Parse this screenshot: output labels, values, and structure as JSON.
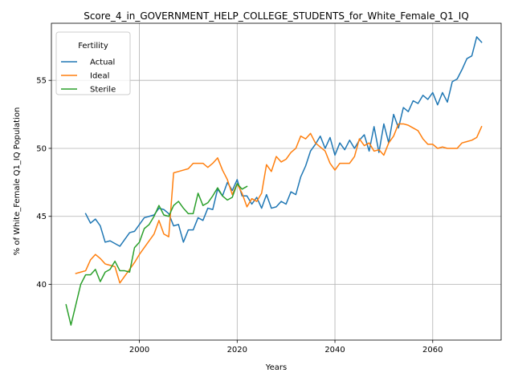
{
  "chart_data": {
    "type": "line",
    "title": "Score_4_in_GOVERNMENT_HELP_COLLEGE_STUDENTS_for_White_Female_Q1_IQ",
    "xlabel": "Years",
    "ylabel": "% of White_Female Q1_IQ Population",
    "xlim": [
      1982,
      2074
    ],
    "ylim": [
      35.9,
      59.2
    ],
    "xticks": [
      2000,
      2020,
      2040,
      2060
    ],
    "yticks": [
      40,
      45,
      50,
      55
    ],
    "grid": true,
    "legend": {
      "title": "Fertility",
      "placement": "top-left"
    },
    "series": [
      {
        "name": "Actual",
        "color": "#1f77b4",
        "points": [
          [
            1989,
            45.2
          ],
          [
            1990,
            44.5
          ],
          [
            1991,
            44.8
          ],
          [
            1992,
            44.3
          ],
          [
            1993,
            43.1
          ],
          [
            1994,
            43.2
          ],
          [
            1995,
            43.0
          ],
          [
            1996,
            42.8
          ],
          [
            1997,
            43.3
          ],
          [
            1998,
            43.8
          ],
          [
            1999,
            43.9
          ],
          [
            2000,
            44.4
          ],
          [
            2001,
            44.9
          ],
          [
            2002,
            45.0
          ],
          [
            2003,
            45.1
          ],
          [
            2004,
            45.6
          ],
          [
            2005,
            45.5
          ],
          [
            2006,
            45.2
          ],
          [
            2007,
            44.3
          ],
          [
            2008,
            44.4
          ],
          [
            2009,
            43.1
          ],
          [
            2010,
            44.0
          ],
          [
            2011,
            44.0
          ],
          [
            2012,
            44.9
          ],
          [
            2013,
            44.7
          ],
          [
            2014,
            45.6
          ],
          [
            2015,
            45.5
          ],
          [
            2016,
            47.0
          ],
          [
            2017,
            46.5
          ],
          [
            2018,
            47.5
          ],
          [
            2019,
            46.9
          ],
          [
            2020,
            47.7
          ],
          [
            2021,
            46.5
          ],
          [
            2022,
            46.5
          ],
          [
            2023,
            45.9
          ],
          [
            2024,
            46.4
          ],
          [
            2025,
            45.6
          ],
          [
            2026,
            46.6
          ],
          [
            2027,
            45.6
          ],
          [
            2028,
            45.7
          ],
          [
            2029,
            46.1
          ],
          [
            2030,
            45.9
          ],
          [
            2031,
            46.8
          ],
          [
            2032,
            46.6
          ],
          [
            2033,
            47.9
          ],
          [
            2034,
            48.7
          ],
          [
            2035,
            49.8
          ],
          [
            2036,
            50.3
          ],
          [
            2037,
            50.9
          ],
          [
            2038,
            50.0
          ],
          [
            2039,
            50.8
          ],
          [
            2040,
            49.5
          ],
          [
            2041,
            50.4
          ],
          [
            2042,
            49.9
          ],
          [
            2043,
            50.6
          ],
          [
            2044,
            50.0
          ],
          [
            2045,
            50.6
          ],
          [
            2046,
            51.0
          ],
          [
            2047,
            49.8
          ],
          [
            2048,
            51.6
          ],
          [
            2049,
            49.7
          ],
          [
            2050,
            51.8
          ],
          [
            2051,
            50.4
          ],
          [
            2052,
            52.5
          ],
          [
            2053,
            51.5
          ],
          [
            2054,
            53.0
          ],
          [
            2055,
            52.7
          ],
          [
            2056,
            53.5
          ],
          [
            2057,
            53.3
          ],
          [
            2058,
            53.9
          ],
          [
            2059,
            53.6
          ],
          [
            2060,
            54.1
          ],
          [
            2061,
            53.2
          ],
          [
            2062,
            54.1
          ],
          [
            2063,
            53.4
          ],
          [
            2064,
            54.9
          ],
          [
            2065,
            55.1
          ],
          [
            2066,
            55.8
          ],
          [
            2067,
            56.6
          ],
          [
            2068,
            56.8
          ],
          [
            2069,
            58.2
          ],
          [
            2070,
            57.8
          ]
        ]
      },
      {
        "name": "Ideal",
        "color": "#ff7f0e",
        "points": [
          [
            1987,
            40.8
          ],
          [
            1988,
            40.9
          ],
          [
            1989,
            41.0
          ],
          [
            1990,
            41.8
          ],
          [
            1991,
            42.2
          ],
          [
            1992,
            41.9
          ],
          [
            1993,
            41.5
          ],
          [
            1994,
            41.4
          ],
          [
            1995,
            41.3
          ],
          [
            1996,
            40.1
          ],
          [
            1997,
            40.6
          ],
          [
            1998,
            41.1
          ],
          [
            1999,
            41.6
          ],
          [
            2000,
            42.2
          ],
          [
            2001,
            42.7
          ],
          [
            2002,
            43.2
          ],
          [
            2003,
            43.7
          ],
          [
            2004,
            44.7
          ],
          [
            2005,
            43.7
          ],
          [
            2006,
            43.5
          ],
          [
            2007,
            48.2
          ],
          [
            2008,
            48.3
          ],
          [
            2009,
            48.4
          ],
          [
            2010,
            48.5
          ],
          [
            2011,
            48.9
          ],
          [
            2012,
            48.9
          ],
          [
            2013,
            48.9
          ],
          [
            2014,
            48.6
          ],
          [
            2015,
            48.9
          ],
          [
            2016,
            49.3
          ],
          [
            2017,
            48.4
          ],
          [
            2018,
            47.7
          ],
          [
            2019,
            46.6
          ],
          [
            2020,
            47.4
          ],
          [
            2021,
            46.7
          ],
          [
            2022,
            45.7
          ],
          [
            2023,
            46.3
          ],
          [
            2024,
            46.1
          ],
          [
            2025,
            46.7
          ],
          [
            2026,
            48.8
          ],
          [
            2027,
            48.3
          ],
          [
            2028,
            49.4
          ],
          [
            2029,
            49.0
          ],
          [
            2030,
            49.2
          ],
          [
            2031,
            49.7
          ],
          [
            2032,
            50.0
          ],
          [
            2033,
            50.9
          ],
          [
            2034,
            50.7
          ],
          [
            2035,
            51.1
          ],
          [
            2036,
            50.4
          ],
          [
            2037,
            50.1
          ],
          [
            2038,
            49.8
          ],
          [
            2039,
            48.9
          ],
          [
            2040,
            48.4
          ],
          [
            2041,
            48.9
          ],
          [
            2042,
            48.9
          ],
          [
            2043,
            48.9
          ],
          [
            2044,
            49.4
          ],
          [
            2045,
            50.7
          ],
          [
            2046,
            50.2
          ],
          [
            2047,
            50.4
          ],
          [
            2048,
            49.8
          ],
          [
            2049,
            49.9
          ],
          [
            2050,
            49.5
          ],
          [
            2051,
            50.4
          ],
          [
            2052,
            50.9
          ],
          [
            2053,
            51.8
          ],
          [
            2054,
            51.8
          ],
          [
            2055,
            51.7
          ],
          [
            2056,
            51.5
          ],
          [
            2057,
            51.3
          ],
          [
            2058,
            50.7
          ],
          [
            2059,
            50.3
          ],
          [
            2060,
            50.3
          ],
          [
            2061,
            50.0
          ],
          [
            2062,
            50.1
          ],
          [
            2063,
            50.0
          ],
          [
            2064,
            50.0
          ],
          [
            2065,
            50.0
          ],
          [
            2066,
            50.4
          ],
          [
            2067,
            50.5
          ],
          [
            2068,
            50.6
          ],
          [
            2069,
            50.8
          ],
          [
            2070,
            51.6
          ]
        ]
      },
      {
        "name": "Sterile",
        "color": "#2ca02c",
        "points": [
          [
            1985,
            38.5
          ],
          [
            1986,
            37.0
          ],
          [
            1987,
            38.5
          ],
          [
            1988,
            40.0
          ],
          [
            1989,
            40.7
          ],
          [
            1990,
            40.7
          ],
          [
            1991,
            41.1
          ],
          [
            1992,
            40.2
          ],
          [
            1993,
            40.9
          ],
          [
            1994,
            41.1
          ],
          [
            1995,
            41.7
          ],
          [
            1996,
            41.0
          ],
          [
            1997,
            41.0
          ],
          [
            1998,
            40.9
          ],
          [
            1999,
            42.7
          ],
          [
            2000,
            43.1
          ],
          [
            2001,
            44.1
          ],
          [
            2002,
            44.4
          ],
          [
            2003,
            45.0
          ],
          [
            2004,
            45.8
          ],
          [
            2005,
            45.1
          ],
          [
            2006,
            45.0
          ],
          [
            2007,
            45.8
          ],
          [
            2008,
            46.1
          ],
          [
            2009,
            45.6
          ],
          [
            2010,
            45.2
          ],
          [
            2011,
            45.2
          ],
          [
            2012,
            46.7
          ],
          [
            2013,
            45.8
          ],
          [
            2014,
            46.0
          ],
          [
            2015,
            46.5
          ],
          [
            2016,
            47.1
          ],
          [
            2017,
            46.5
          ],
          [
            2018,
            46.2
          ],
          [
            2019,
            46.4
          ],
          [
            2020,
            47.4
          ],
          [
            2021,
            47.0
          ],
          [
            2022,
            47.2
          ]
        ]
      }
    ]
  }
}
